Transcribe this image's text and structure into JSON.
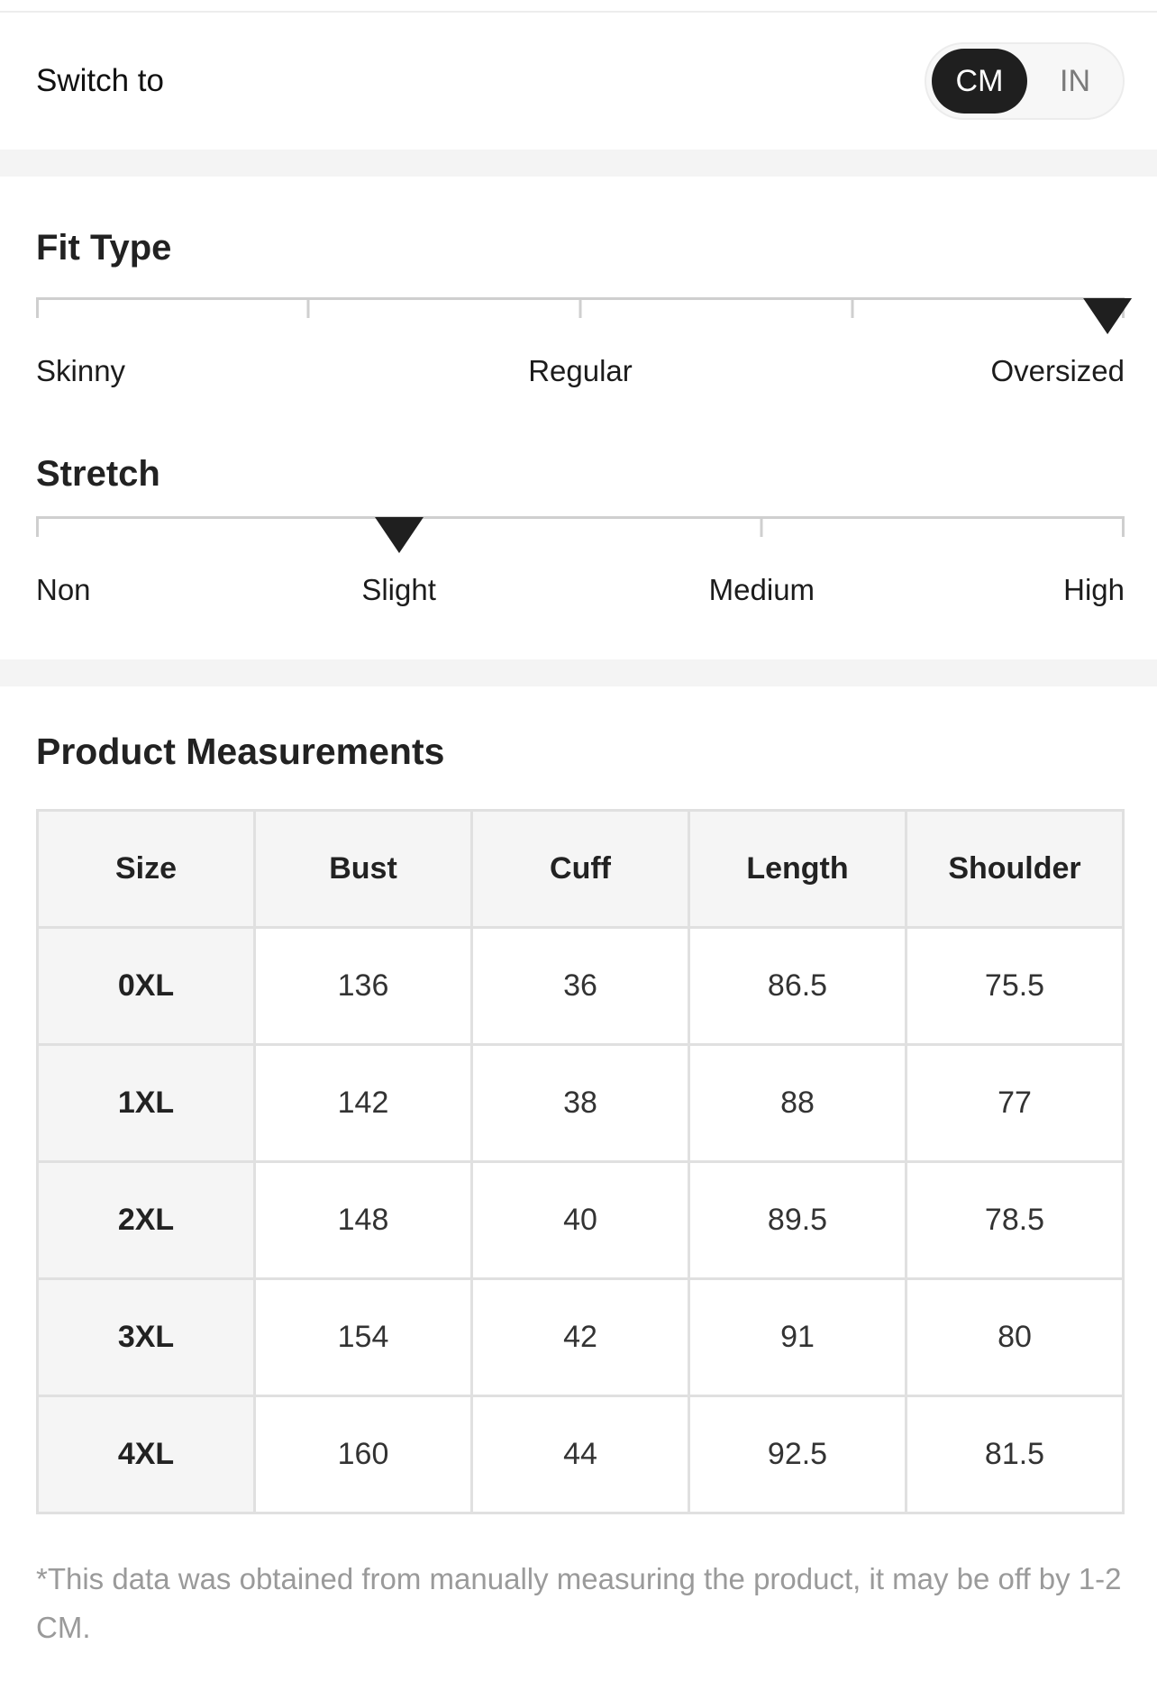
{
  "unit_switch": {
    "label": "Switch to",
    "options": [
      {
        "id": "cm",
        "label": "CM",
        "selected": true
      },
      {
        "id": "in",
        "label": "IN",
        "selected": false
      }
    ]
  },
  "sliders": [
    {
      "id": "fit-type",
      "title": "Fit Type",
      "tick_percents": [
        0,
        25,
        50,
        75,
        100
      ],
      "marker_percent": 100,
      "selected_value": "Oversized",
      "labels": [
        {
          "text": "Skinny",
          "percent": 0
        },
        {
          "text": "Regular",
          "percent": 50
        },
        {
          "text": "Oversized",
          "percent": 100
        }
      ]
    },
    {
      "id": "stretch",
      "title": "Stretch",
      "tick_percents": [
        0,
        33.33,
        66.67,
        100
      ],
      "marker_percent": 33.33,
      "selected_value": "Slight",
      "labels": [
        {
          "text": "Non",
          "percent": 0
        },
        {
          "text": "Slight",
          "percent": 33.33
        },
        {
          "text": "Medium",
          "percent": 66.67
        },
        {
          "text": "High",
          "percent": 100
        }
      ]
    }
  ],
  "measurements": {
    "title": "Product Measurements",
    "columns": [
      "Size",
      "Bust",
      "Cuff",
      "Length",
      "Shoulder"
    ],
    "rows": [
      [
        "0XL",
        "136",
        "36",
        "86.5",
        "75.5"
      ],
      [
        "1XL",
        "142",
        "38",
        "88",
        "77"
      ],
      [
        "2XL",
        "148",
        "40",
        "89.5",
        "78.5"
      ],
      [
        "3XL",
        "154",
        "42",
        "91",
        "80"
      ],
      [
        "4XL",
        "160",
        "44",
        "92.5",
        "81.5"
      ]
    ]
  },
  "footnote": "*This data was obtained from manually measuring the product, it may be off by 1-2 CM.",
  "colors": {
    "accent_dark": "#1f1f1f",
    "band": "#f4f4f4",
    "table_border": "#e0e0e0",
    "table_header_bg": "#f5f5f5",
    "slider_line": "#cfcfcf",
    "footnote_text": "#9a9a9a"
  }
}
